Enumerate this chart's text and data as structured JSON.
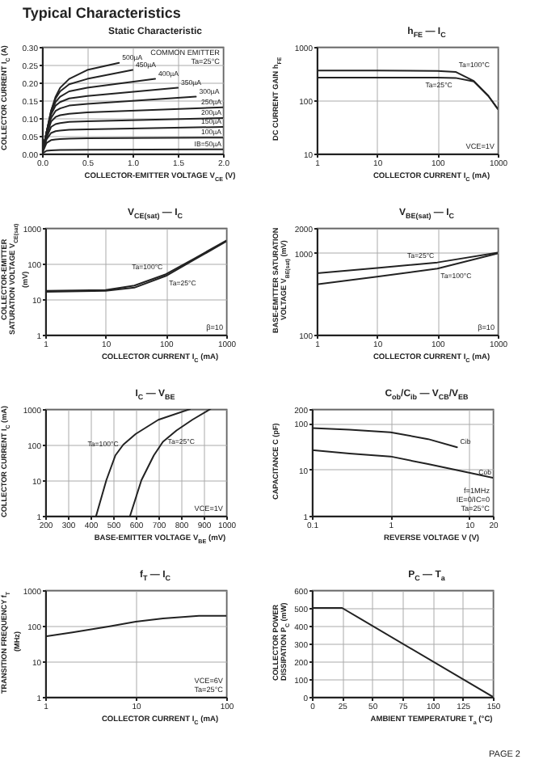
{
  "chart_data": [
    {
      "type": "other",
      "title": "Typical Characteristics",
      "annotations": [
        "PAGE 2"
      ]
    },
    {
      "type": "line",
      "title": "Static Characteristic",
      "xlabel": "COLLECTOR-EMITTER VOLTAGE V$_{CE}$ (V)",
      "ylabel": "COLLECTOR CURRENT I$_{C}$ (A)",
      "xlim": [
        0,
        2
      ],
      "xticks": [
        {
          "value": 0,
          "label": "0.0"
        },
        {
          "value": 0.5,
          "label": "0.5"
        },
        {
          "value": 1,
          "label": "1.0"
        },
        {
          "value": 1.5,
          "label": "1.5"
        },
        {
          "value": 2,
          "label": "2.0"
        }
      ],
      "ylim": [
        0,
        0.3
      ],
      "yticks": [
        {
          "value": 0,
          "label": "0.00"
        },
        {
          "value": 0.05,
          "label": "0.05"
        },
        {
          "value": 0.1,
          "label": "0.10"
        },
        {
          "value": 0.15,
          "label": "0.15"
        },
        {
          "value": 0.2,
          "label": "0.20"
        },
        {
          "value": 0.25,
          "label": "0.25"
        },
        {
          "value": 0.3,
          "label": "0.30"
        }
      ],
      "grid": true,
      "annotations": [
        "COMMON EMITTER",
        "Ta=25°C"
      ],
      "series": [
        {
          "name": "500µA",
          "color": "#222222",
          "x": [
            0,
            0.05,
            0.1,
            0.15,
            0.2,
            0.3,
            0.5,
            0.85
          ],
          "values": [
            0,
            0.06,
            0.12,
            0.16,
            0.185,
            0.21,
            0.235,
            0.255
          ]
        },
        {
          "name": "450µA",
          "color": "#222222",
          "x": [
            0,
            0.05,
            0.1,
            0.15,
            0.2,
            0.3,
            0.5,
            1.0
          ],
          "values": [
            0,
            0.06,
            0.12,
            0.155,
            0.175,
            0.195,
            0.21,
            0.235
          ]
        },
        {
          "name": "400µA",
          "color": "#222222",
          "x": [
            0,
            0.05,
            0.1,
            0.15,
            0.2,
            0.3,
            0.5,
            1.25
          ],
          "values": [
            0,
            0.06,
            0.115,
            0.145,
            0.16,
            0.175,
            0.185,
            0.21
          ]
        },
        {
          "name": "350µA",
          "color": "#222222",
          "x": [
            0,
            0.05,
            0.1,
            0.15,
            0.2,
            0.3,
            0.5,
            1.5
          ],
          "values": [
            0,
            0.06,
            0.11,
            0.135,
            0.145,
            0.155,
            0.162,
            0.185
          ]
        },
        {
          "name": "300µA",
          "color": "#222222",
          "x": [
            0,
            0.05,
            0.1,
            0.15,
            0.2,
            0.3,
            0.5,
            1.7
          ],
          "values": [
            0,
            0.06,
            0.1,
            0.12,
            0.127,
            0.135,
            0.14,
            0.16
          ]
        },
        {
          "name": "250µA",
          "color": "#222222",
          "x": [
            0,
            0.05,
            0.1,
            0.15,
            0.2,
            0.3,
            0.5,
            2.0
          ],
          "values": [
            0,
            0.05,
            0.09,
            0.103,
            0.108,
            0.112,
            0.116,
            0.13
          ]
        },
        {
          "name": "200µA",
          "color": "#222222",
          "x": [
            0,
            0.05,
            0.1,
            0.15,
            0.2,
            0.3,
            0.5,
            2.0
          ],
          "values": [
            0,
            0.045,
            0.075,
            0.083,
            0.086,
            0.089,
            0.091,
            0.1
          ]
        },
        {
          "name": "150µA",
          "color": "#222222",
          "x": [
            0,
            0.05,
            0.1,
            0.15,
            0.2,
            0.3,
            0.5,
            2.0
          ],
          "values": [
            0,
            0.04,
            0.058,
            0.063,
            0.065,
            0.067,
            0.068,
            0.075
          ]
        },
        {
          "name": "100µA",
          "color": "#222222",
          "x": [
            0,
            0.05,
            0.1,
            0.15,
            0.2,
            0.3,
            0.5,
            2.0
          ],
          "values": [
            0,
            0.03,
            0.038,
            0.04,
            0.041,
            0.042,
            0.043,
            0.045
          ]
        },
        {
          "name": "IB=50µA",
          "color": "#222222",
          "x": [
            0,
            0.05,
            0.1,
            0.2,
            0.5,
            2.0
          ],
          "values": [
            0,
            0.008,
            0.009,
            0.01,
            0.011,
            0.012
          ]
        }
      ]
    },
    {
      "type": "line",
      "title": "h$_{FE}$ — I$_{C}$",
      "xlabel": "COLLECTOR CURRENT I$_{C}$ (mA)",
      "ylabel": "DC CURRENT GAIN h$_{FE}$",
      "log": "xy",
      "xlim": [
        1,
        1000
      ],
      "xticks": [
        1,
        10,
        100,
        1000
      ],
      "ylim": [
        10,
        1000
      ],
      "yticks": [
        10,
        100,
        1000
      ],
      "grid": true,
      "annotations": [
        "VCE=1V"
      ],
      "x": [
        1,
        10,
        100,
        200,
        400,
        700,
        1000
      ],
      "series": [
        {
          "name": "Ta=100°C",
          "color": "#222222",
          "values": [
            360,
            360,
            355,
            340,
            230,
            120,
            69
          ]
        },
        {
          "name": "Ta=25°C",
          "color": "#222222",
          "values": [
            265,
            265,
            265,
            262,
            225,
            120,
            69
          ]
        }
      ]
    },
    {
      "type": "line",
      "title": "V$_{CE(sat)}$ — I$_{C}$",
      "xlabel": "COLLECTOR CURRENT I$_{C}$ (mA)",
      "ylabel": "COLLECTOR-EMITTER SATURATION VOLTAGE V$_{CE(sat)}$ (mV)",
      "log": "xy",
      "xlim": [
        1,
        1000
      ],
      "xticks": [
        1,
        10,
        100,
        1000
      ],
      "ylim": [
        1,
        1000
      ],
      "yticks": [
        1,
        10,
        100,
        1000
      ],
      "grid": true,
      "annotations": [
        "β=10"
      ],
      "x": [
        1,
        10,
        30,
        100,
        300,
        1000
      ],
      "series": [
        {
          "name": "Ta=100°C",
          "color": "#222222",
          "values": [
            17,
            18,
            24,
            50,
            140,
            440
          ]
        },
        {
          "name": "Ta=25°C",
          "color": "#222222",
          "values": [
            16,
            17,
            21,
            45,
            130,
            420
          ]
        }
      ]
    },
    {
      "type": "line",
      "title": "V$_{BE(sat)}$ — I$_{C}$",
      "xlabel": "COLLECTOR CURRENT I$_{C}$ (mA)",
      "ylabel": "BASE-EMITTER SATURATION VOLTAGE V$_{BE(sat)}$ (mV)",
      "log": "xy",
      "xlim": [
        1,
        1000
      ],
      "xticks": [
        1,
        10,
        100,
        1000
      ],
      "ylim": [
        100,
        2000
      ],
      "yticks": [
        100,
        1000,
        2000
      ],
      "grid": true,
      "annotations": [
        "β=10"
      ],
      "x": [
        1,
        10,
        100,
        1000
      ],
      "series": [
        {
          "name": "Ta=25°C",
          "color": "#222222",
          "values": [
            560,
            650,
            760,
            1000
          ]
        },
        {
          "name": "Ta=100°C",
          "color": "#222222",
          "values": [
            410,
            510,
            640,
            980
          ]
        }
      ]
    },
    {
      "type": "line",
      "title": "I$_{C}$ — V$_{BE}$",
      "xlabel": "BASE-EMITTER VOLTAGE V$_{BE}$ (mV)",
      "ylabel": "COLLECTOR CURRENT I$_{C}$ (mA)",
      "log": "y",
      "xlim": [
        200,
        1000
      ],
      "xticks": [
        200,
        300,
        400,
        500,
        600,
        700,
        800,
        900,
        1000
      ],
      "ylim": [
        1,
        1000
      ],
      "yticks": [
        1,
        10,
        100,
        1000
      ],
      "grid": true,
      "annotations": [
        "VCE=1V"
      ],
      "series": [
        {
          "name": "Ta=100°C",
          "color": "#222222",
          "x": [
            425,
            470,
            510,
            545,
            600,
            700,
            840
          ],
          "values": [
            1,
            10,
            50,
            100,
            200,
            500,
            1000
          ]
        },
        {
          "name": "Ta=25°C",
          "color": "#222222",
          "x": [
            575,
            625,
            680,
            720,
            780,
            850,
            930
          ],
          "values": [
            1,
            10,
            50,
            120,
            250,
            500,
            1000
          ]
        }
      ]
    },
    {
      "type": "line",
      "title": "C$_{ob}$/C$_{ib}$ — V$_{CB}$/V$_{EB}$",
      "xlabel": "REVERSE VOLTAGE V (V)",
      "ylabel": "CAPACITANCE C (pF)",
      "log": "xy",
      "xlim": [
        0.1,
        20
      ],
      "xticks": [
        0.1,
        1,
        10,
        20
      ],
      "ylim": [
        1,
        200
      ],
      "yticks": [
        1,
        10,
        100,
        200
      ],
      "grid": true,
      "annotations": [
        "f=1MHz",
        "IE=0/IC=0",
        "Ta=25°C"
      ],
      "series": [
        {
          "name": "Cib",
          "color": "#222222",
          "x": [
            0.1,
            0.3,
            1,
            3,
            7
          ],
          "values": [
            78,
            72,
            63,
            45,
            30
          ]
        },
        {
          "name": "Cob",
          "color": "#222222",
          "x": [
            0.1,
            0.3,
            1,
            3,
            10,
            20
          ],
          "values": [
            26,
            22,
            19,
            13,
            8.5,
            6.6
          ]
        }
      ]
    },
    {
      "type": "line",
      "title": "f$_{T}$ — I$_{C}$",
      "xlabel": "COLLECTOR CURRENT I$_{C}$ (mA)",
      "ylabel": "TRANSITION FREQUENCY f$_{T}$ (MHz)",
      "log": "xy",
      "xlim": [
        1,
        100
      ],
      "xticks": [
        1,
        10,
        100
      ],
      "ylim": [
        1,
        1000
      ],
      "yticks": [
        1,
        10,
        100,
        1000
      ],
      "grid": true,
      "annotations": [
        "VCE=6V",
        "Ta=25°C"
      ],
      "x": [
        1,
        2,
        5,
        10,
        20,
        50,
        100
      ],
      "series": [
        {
          "color": "#222222",
          "values": [
            50,
            65,
            95,
            130,
            160,
            190,
            190
          ]
        }
      ]
    },
    {
      "type": "line",
      "title": "P$_{C}$ — T$_{a}$",
      "xlabel": "AMBIENT TEMPERATURE T$_{a}$ (°C)",
      "ylabel": "COLLECTOR POWER DISSIPATION P$_{C}$ (mW)",
      "xlim": [
        0,
        150
      ],
      "xticks": [
        0,
        25,
        50,
        75,
        100,
        125,
        150
      ],
      "ylim": [
        0,
        600
      ],
      "yticks": [
        0,
        100,
        200,
        300,
        400,
        500,
        600
      ],
      "grid": true,
      "x": [
        0,
        25,
        150
      ],
      "series": [
        {
          "color": "#222222",
          "values": [
            500,
            500,
            0
          ]
        }
      ]
    }
  ]
}
